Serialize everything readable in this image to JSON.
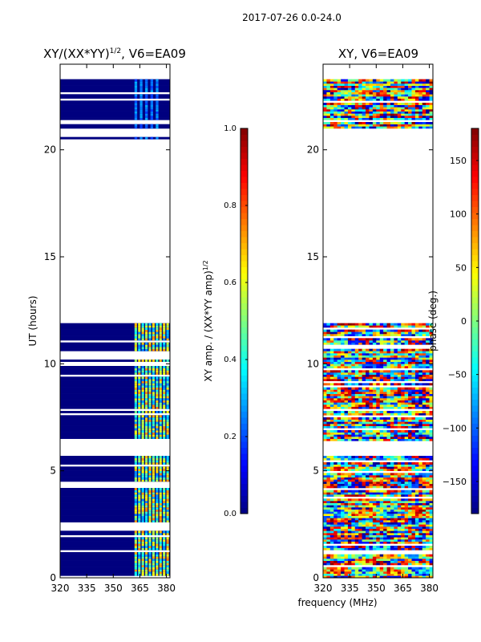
{
  "figure_title": "2017-07-26 0.0-24.0",
  "shared_xlabel": "frequency (MHz)",
  "colors": {
    "jet": [
      "#00007f",
      "#0000ff",
      "#007fff",
      "#00ffff",
      "#7fff7f",
      "#ffff00",
      "#ff7f00",
      "#ff0000",
      "#7f0000"
    ]
  },
  "chart_data": [
    {
      "type": "heatmap",
      "id": "amp",
      "title": "XY/(XX*YY)",
      "title_sup": "1/2",
      "title_suffix": ", V6=EA09",
      "ylabel": "UT (hours)",
      "x_ticks": [
        "320",
        "335",
        "350",
        "365",
        "380"
      ],
      "x_tick_values": [
        320,
        335,
        350,
        365,
        380
      ],
      "xlim": [
        320,
        382
      ],
      "ylim": [
        0,
        24
      ],
      "y_ticks": [
        "0",
        "5",
        "10",
        "15",
        "20"
      ],
      "y_tick_values": [
        0,
        5,
        10,
        15,
        20
      ],
      "data_blocks_ut": [
        [
          0,
          5.7
        ],
        [
          6.4,
          11.9
        ],
        [
          20.5,
          20.6
        ],
        [
          21.0,
          21.3
        ],
        [
          21.4,
          23.3
        ]
      ],
      "colorbar": {
        "label": "XY amp. / (XX*YY amp)",
        "label_sup": "1/2",
        "range": [
          0.0,
          1.0
        ],
        "ticks": [
          "0.0",
          "0.2",
          "0.4",
          "0.6",
          "0.8",
          "1.0"
        ],
        "tick_values": [
          0.0,
          0.2,
          0.4,
          0.6,
          0.8,
          1.0
        ]
      }
    },
    {
      "type": "heatmap",
      "id": "phase",
      "title": "XY, V6=EA09",
      "x_ticks": [
        "320",
        "335",
        "350",
        "365",
        "380"
      ],
      "x_tick_values": [
        320,
        335,
        350,
        365,
        380
      ],
      "xlim": [
        320,
        382
      ],
      "ylim": [
        0,
        24
      ],
      "y_ticks": [
        "0",
        "5",
        "10",
        "15",
        "20"
      ],
      "y_tick_values": [
        0,
        5,
        10,
        15,
        20
      ],
      "data_blocks_ut": [
        [
          0,
          5.7
        ],
        [
          6.4,
          11.9
        ],
        [
          20.5,
          20.6
        ],
        [
          21.0,
          21.3
        ],
        [
          21.4,
          23.3
        ]
      ],
      "colorbar": {
        "label": "phase (deg.)",
        "range": [
          -180,
          180
        ],
        "ticks": [
          "−150",
          "−100",
          "−50",
          "0",
          "50",
          "100",
          "150"
        ],
        "tick_values": [
          -150,
          -100,
          -50,
          0,
          50,
          100,
          150
        ]
      }
    }
  ]
}
